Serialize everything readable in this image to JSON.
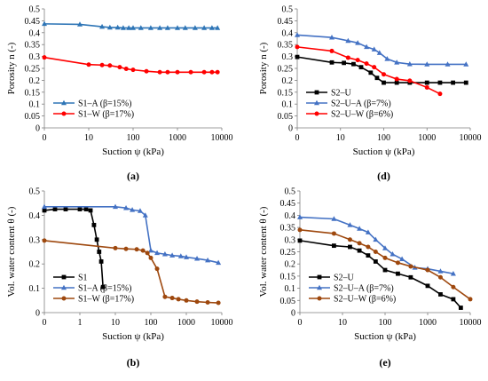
{
  "chart_data": [
    {
      "id": "a",
      "panel_label": "(a)",
      "type": "line",
      "xlabel": "Suction ψ (kPa)",
      "ylabel": "Porosity n (-)",
      "xscale": "symlog",
      "xticks": [
        "0",
        "10",
        "100",
        "1000",
        "10000"
      ],
      "xlim": [
        0,
        10000
      ],
      "ylim": [
        0,
        0.5
      ],
      "yticks": [
        "0",
        "0.05",
        "0.1",
        "0.15",
        "0.2",
        "0.25",
        "0.3",
        "0.35",
        "0.4",
        "0.45",
        "0.5"
      ],
      "legend_position": "bottom-left",
      "series": [
        {
          "name": "S1–A (β=15%)",
          "color": "#2e75b6",
          "marker": "triangle",
          "x": [
            0,
            8,
            20,
            30,
            45,
            60,
            80,
            100,
            150,
            250,
            400,
            600,
            1000,
            1500,
            2500,
            4000,
            6000,
            8000
          ],
          "y": [
            0.437,
            0.435,
            0.425,
            0.422,
            0.422,
            0.42,
            0.42,
            0.42,
            0.42,
            0.42,
            0.42,
            0.42,
            0.42,
            0.42,
            0.42,
            0.42,
            0.42,
            0.42
          ]
        },
        {
          "name": "S1–W (β=17%)",
          "color": "#ff0000",
          "marker": "circle",
          "x": [
            0,
            10,
            20,
            30,
            50,
            70,
            100,
            200,
            400,
            600,
            1000,
            2000,
            4000,
            6000,
            8000
          ],
          "y": [
            0.296,
            0.266,
            0.264,
            0.262,
            0.255,
            0.248,
            0.244,
            0.238,
            0.234,
            0.234,
            0.234,
            0.234,
            0.234,
            0.234,
            0.234
          ]
        }
      ]
    },
    {
      "id": "d",
      "panel_label": "(d)",
      "type": "line",
      "xlabel": "Suction ψ (kPa)",
      "ylabel": "Porosity n (-)",
      "xscale": "symlog",
      "xticks": [
        "0",
        "10",
        "100",
        "1000",
        "10000"
      ],
      "xlim": [
        0,
        10000
      ],
      "ylim": [
        0,
        0.5
      ],
      "yticks": [
        "0",
        "0.05",
        "0.1",
        "0.15",
        "0.2",
        "0.25",
        "0.3",
        "0.35",
        "0.4",
        "0.45",
        "0.5"
      ],
      "legend_position": "bottom-left",
      "series": [
        {
          "name": "S2–U",
          "color": "#000000",
          "marker": "square",
          "x": [
            0,
            8,
            12,
            20,
            30,
            50,
            70,
            100,
            200,
            400,
            1000,
            2000,
            4000,
            8000
          ],
          "y": [
            0.298,
            0.275,
            0.273,
            0.268,
            0.255,
            0.232,
            0.21,
            0.19,
            0.19,
            0.19,
            0.19,
            0.19,
            0.19,
            0.19
          ]
        },
        {
          "name": "S2–U–A (β=7%)",
          "color": "#4472c4",
          "marker": "triangle",
          "x": [
            0,
            8,
            15,
            25,
            40,
            60,
            80,
            120,
            200,
            400,
            1000,
            3000,
            8000
          ],
          "y": [
            0.39,
            0.38,
            0.366,
            0.357,
            0.34,
            0.33,
            0.315,
            0.29,
            0.275,
            0.268,
            0.267,
            0.267,
            0.267
          ]
        },
        {
          "name": "S2–U–W (β=6%)",
          "color": "#ff0000",
          "marker": "circle",
          "x": [
            0,
            8,
            15,
            25,
            40,
            60,
            100,
            200,
            400,
            1000,
            2000
          ],
          "y": [
            0.34,
            0.323,
            0.295,
            0.285,
            0.27,
            0.255,
            0.225,
            0.205,
            0.198,
            0.17,
            0.143
          ]
        }
      ]
    },
    {
      "id": "b",
      "panel_label": "(b)",
      "type": "line",
      "xlabel": "Suction ψ (kPa)",
      "ylabel": "Vol. water content θ (-)",
      "xscale": "symlog",
      "xticks": [
        "0",
        "1",
        "10",
        "100",
        "1000",
        "10000"
      ],
      "xlim": [
        0,
        10000
      ],
      "ylim": [
        0,
        0.5
      ],
      "yticks": [
        "0",
        "0.1",
        "0.2",
        "0.3",
        "0.4",
        "0.5"
      ],
      "legend_position": "bottom-left",
      "series": [
        {
          "name": "S1",
          "color": "#000000",
          "marker": "square",
          "x": [
            0,
            0.3,
            0.6,
            1.0,
            1.5,
            2.0,
            2.5,
            3.0,
            3.5,
            4.0,
            4.5
          ],
          "y": [
            0.42,
            0.425,
            0.425,
            0.425,
            0.425,
            0.42,
            0.36,
            0.3,
            0.25,
            0.21,
            0.105
          ]
        },
        {
          "name": "S1–A (β=15%)",
          "color": "#4472c4",
          "marker": "triangle",
          "x": [
            0,
            10,
            20,
            30,
            50,
            70,
            100,
            150,
            250,
            400,
            700,
            1000,
            2000,
            4000,
            8000
          ],
          "y": [
            0.435,
            0.435,
            0.43,
            0.422,
            0.418,
            0.4,
            0.255,
            0.245,
            0.24,
            0.235,
            0.232,
            0.228,
            0.222,
            0.215,
            0.205
          ]
        },
        {
          "name": "S1–W (β=17%)",
          "color": "#9e480e",
          "marker": "circle",
          "x": [
            0,
            10,
            20,
            40,
            60,
            80,
            100,
            150,
            250,
            400,
            600,
            1000,
            2000,
            4000,
            8000
          ],
          "y": [
            0.296,
            0.265,
            0.262,
            0.26,
            0.255,
            0.245,
            0.225,
            0.18,
            0.065,
            0.06,
            0.055,
            0.05,
            0.045,
            0.042,
            0.04
          ]
        }
      ]
    },
    {
      "id": "e",
      "panel_label": "(e)",
      "type": "line",
      "xlabel": "Suction ψ (kPa)",
      "ylabel": "Vol. water content θ (-)",
      "xscale": "symlog",
      "xticks": [
        "0",
        "10",
        "100",
        "1000",
        "10000"
      ],
      "xlim": [
        0,
        10000
      ],
      "ylim": [
        0,
        0.5
      ],
      "yticks": [
        "0",
        "0.05",
        "0.1",
        "0.15",
        "0.2",
        "0.25",
        "0.3",
        "0.35",
        "0.4",
        "0.45",
        "0.5"
      ],
      "legend_position": "bottom-left",
      "series": [
        {
          "name": "S2–U",
          "color": "#000000",
          "marker": "square",
          "x": [
            0,
            8,
            15,
            25,
            40,
            60,
            100,
            200,
            400,
            1000,
            2000,
            4000,
            6000
          ],
          "y": [
            0.296,
            0.275,
            0.27,
            0.255,
            0.235,
            0.21,
            0.175,
            0.16,
            0.145,
            0.11,
            0.075,
            0.055,
            0.02
          ]
        },
        {
          "name": "S2–U–A (β=7%)",
          "color": "#4472c4",
          "marker": "triangle",
          "x": [
            0,
            8,
            15,
            25,
            40,
            60,
            100,
            150,
            250,
            500,
            1000,
            2000,
            4000
          ],
          "y": [
            0.392,
            0.385,
            0.36,
            0.345,
            0.33,
            0.3,
            0.265,
            0.24,
            0.22,
            0.185,
            0.18,
            0.17,
            0.16
          ]
        },
        {
          "name": "S2–U–W (β=6%)",
          "color": "#9e480e",
          "marker": "circle",
          "x": [
            0,
            8,
            15,
            25,
            40,
            60,
            100,
            200,
            400,
            1000,
            2000,
            4000,
            10000
          ],
          "y": [
            0.34,
            0.325,
            0.3,
            0.285,
            0.27,
            0.25,
            0.225,
            0.205,
            0.19,
            0.175,
            0.145,
            0.105,
            0.055
          ]
        }
      ]
    }
  ]
}
